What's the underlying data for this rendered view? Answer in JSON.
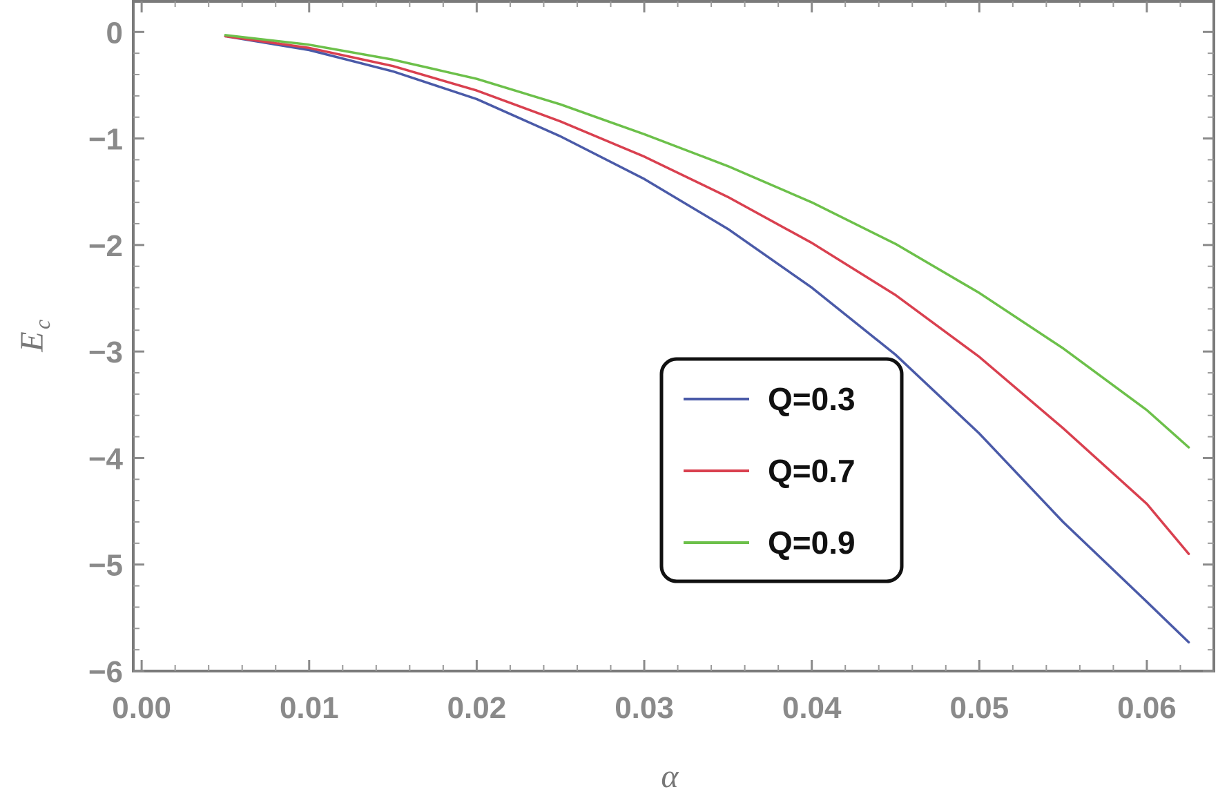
{
  "chart_data": {
    "type": "line",
    "xlabel": "α",
    "ylabel": "E",
    "ylabel_subscript": "c",
    "xlim": [
      -0.0005,
      0.064
    ],
    "ylim": [
      -6.0,
      0.3
    ],
    "x_ticks": [
      0.0,
      0.01,
      0.02,
      0.03,
      0.04,
      0.05,
      0.06
    ],
    "x_tick_labels": [
      "0.00",
      "0.01",
      "0.02",
      "0.03",
      "0.04",
      "0.05",
      "0.06"
    ],
    "y_ticks": [
      0,
      -1,
      -2,
      -3,
      -4,
      -5,
      -6
    ],
    "y_tick_labels": [
      "0",
      "−1",
      "−2",
      "−3",
      "−4",
      "−5",
      "−6"
    ],
    "grid": false,
    "legend_position": "lower-right inside",
    "series": [
      {
        "name": "Q=0.3",
        "color": "#4a5aa8",
        "x": [
          0.005,
          0.01,
          0.015,
          0.02,
          0.025,
          0.03,
          0.035,
          0.04,
          0.045,
          0.05,
          0.055,
          0.06,
          0.0625
        ],
        "y": [
          -0.04,
          -0.17,
          -0.37,
          -0.63,
          -0.98,
          -1.38,
          -1.85,
          -2.4,
          -3.03,
          -3.77,
          -4.6,
          -5.35,
          -5.73
        ]
      },
      {
        "name": "Q=0.7",
        "color": "#d9404f",
        "x": [
          0.005,
          0.01,
          0.015,
          0.02,
          0.025,
          0.03,
          0.035,
          0.04,
          0.045,
          0.05,
          0.055,
          0.06,
          0.0625
        ],
        "y": [
          -0.04,
          -0.15,
          -0.32,
          -0.55,
          -0.84,
          -1.17,
          -1.55,
          -1.98,
          -2.47,
          -3.05,
          -3.72,
          -4.43,
          -4.9
        ]
      },
      {
        "name": "Q=0.9",
        "color": "#6cc04a",
        "x": [
          0.005,
          0.01,
          0.015,
          0.02,
          0.025,
          0.03,
          0.035,
          0.04,
          0.045,
          0.05,
          0.055,
          0.06,
          0.0625
        ],
        "y": [
          -0.03,
          -0.12,
          -0.26,
          -0.44,
          -0.68,
          -0.96,
          -1.26,
          -1.6,
          -1.99,
          -2.45,
          -2.97,
          -3.55,
          -3.9
        ]
      }
    ]
  }
}
